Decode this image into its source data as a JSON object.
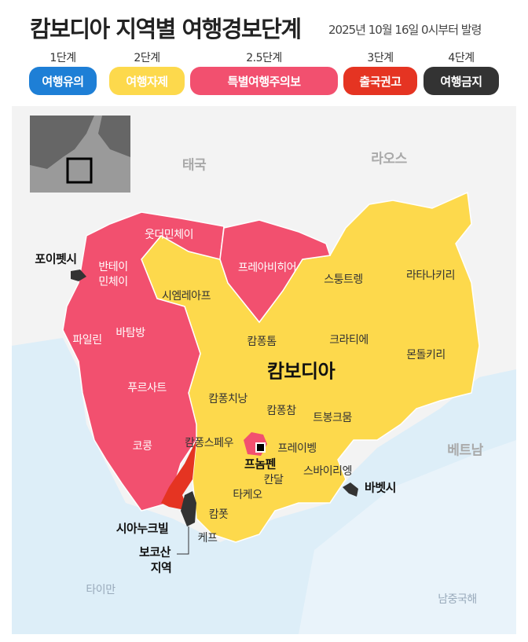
{
  "header": {
    "title": "캄보디아 지역별 여행경보단계",
    "subtitle": "2025년 10월 16일 0시부터 발령"
  },
  "legend": [
    {
      "level": "1단계",
      "label": "여행유의",
      "color": "#1e7fd6"
    },
    {
      "level": "2단계",
      "label": "여행자제",
      "color": "#fdd94c"
    },
    {
      "level": "2.5단계",
      "label": "특별여행주의보",
      "color": "#f2506f"
    },
    {
      "level": "3단계",
      "label": "출국권고",
      "color": "#e53422"
    },
    {
      "level": "4단계",
      "label": "여행금지",
      "color": "#333333"
    }
  ],
  "map": {
    "country": "캄보디아",
    "neighbors": {
      "thailand": "태국",
      "laos": "라오스",
      "vietnam": "베트남",
      "gulf": "타이만",
      "south_china_sea": "남중국해"
    },
    "regions": {
      "oddar_meanchey": "웃더민체이",
      "banteay_meanchey": "반테이\n민체이",
      "preah_vihear": "프레아비히어",
      "siem_reap": "시엠레아프",
      "stung_treng": "스퉁트렝",
      "ratanakiri": "라타나키리",
      "pailin": "파일린",
      "battambang": "바탐방",
      "kampong_thom": "캄퐁톰",
      "kratie": "크라티에",
      "mondulkiri": "몬돌키리",
      "pursat": "푸르사트",
      "kampong_chhnang": "캄퐁치낭",
      "kampong_cham": "캄퐁참",
      "tboung_khmum": "트봉크뭄",
      "koh_kong": "코콩",
      "kampong_speu": "캄퐁스페우",
      "prey_veng": "프레이벵",
      "phnom_penh": "프놈펜",
      "svay_rieng": "스바이리엥",
      "kandal": "칸달",
      "takeo": "타케오",
      "kampot": "캄폿",
      "kep": "케프"
    },
    "callouts": {
      "poipet": "포이펫시",
      "bavet": "바벳시",
      "sihanoukville": "시아누크빌",
      "bokor_1": "보코산",
      "bokor_2": "지역"
    }
  }
}
